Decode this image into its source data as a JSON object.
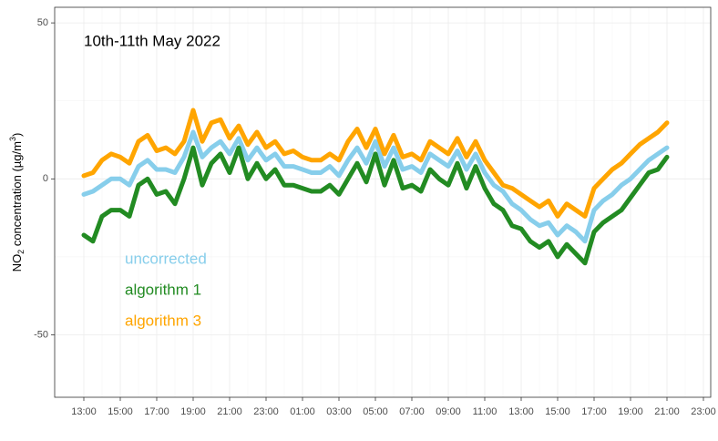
{
  "chart_data": {
    "type": "line",
    "title": "10th-11th May 2022",
    "ylabel_parts": [
      "NO",
      "2",
      " concentration (µg/m",
      "3",
      ")"
    ],
    "x": [
      13,
      13.5,
      14,
      14.5,
      15,
      15.5,
      16,
      16.5,
      17,
      17.5,
      18,
      18.5,
      19,
      19.5,
      20,
      20.5,
      21,
      21.5,
      22,
      22.5,
      23,
      23.5,
      24,
      24.5,
      25,
      25.5,
      26,
      26.5,
      27,
      27.5,
      28,
      28.5,
      29,
      29.5,
      30,
      30.5,
      31,
      31.5,
      32,
      32.5,
      33,
      33.5,
      34,
      34.5,
      35,
      35.5,
      36,
      36.5,
      37,
      37.5,
      38,
      38.5,
      39,
      39.5,
      40,
      40.5,
      41,
      41.5,
      42,
      42.5,
      43,
      43.5,
      44,
      44.5,
      45
    ],
    "series": [
      {
        "name": "uncorrected",
        "color": "#87ceeb",
        "values": [
          -5,
          -4,
          -2,
          0,
          0,
          -2,
          4,
          6,
          3,
          3,
          2,
          7,
          15,
          7,
          10,
          12,
          8,
          13,
          6,
          10,
          6,
          8,
          4,
          4,
          3,
          2,
          2,
          4,
          1,
          6,
          10,
          5,
          12,
          4,
          10,
          3,
          4,
          2,
          8,
          6,
          4,
          9,
          3,
          8,
          2,
          -2,
          -4,
          -8,
          -10,
          -13,
          -15,
          -14,
          -18,
          -15,
          -17,
          -20,
          -10,
          -7,
          -5,
          -2,
          0,
          3,
          6,
          8,
          10
        ]
      },
      {
        "name": "algorithm 1",
        "color": "#228b22",
        "values": [
          -18,
          -20,
          -12,
          -10,
          -10,
          -12,
          -2,
          0,
          -5,
          -4,
          -8,
          0,
          10,
          -2,
          5,
          8,
          2,
          10,
          0,
          5,
          0,
          3,
          -2,
          -2,
          -3,
          -4,
          -4,
          -2,
          -5,
          0,
          5,
          -1,
          8,
          -2,
          6,
          -3,
          -2,
          -4,
          3,
          0,
          -2,
          5,
          -3,
          4,
          -3,
          -8,
          -10,
          -15,
          -16,
          -20,
          -22,
          -20,
          -25,
          -21,
          -24,
          -27,
          -17,
          -14,
          -12,
          -10,
          -6,
          -2,
          2,
          3,
          7
        ]
      },
      {
        "name": "algorithm 3",
        "color": "#ffa500",
        "values": [
          1,
          2,
          6,
          8,
          7,
          5,
          12,
          14,
          9,
          10,
          8,
          12,
          22,
          12,
          18,
          19,
          13,
          17,
          11,
          15,
          10,
          12,
          8,
          9,
          7,
          6,
          6,
          8,
          6,
          12,
          16,
          10,
          16,
          8,
          14,
          7,
          8,
          6,
          12,
          10,
          8,
          13,
          7,
          12,
          6,
          2,
          -2,
          -3,
          -5,
          -7,
          -9,
          -7,
          -12,
          -8,
          -10,
          -12,
          -3,
          0,
          3,
          5,
          8,
          11,
          13,
          15,
          18
        ]
      }
    ],
    "xlim": [
      11.4,
      47.4
    ],
    "xticks": [
      {
        "value": 13,
        "label": "13:00"
      },
      {
        "value": 15,
        "label": "15:00"
      },
      {
        "value": 17,
        "label": "17:00"
      },
      {
        "value": 19,
        "label": "19:00"
      },
      {
        "value": 21,
        "label": "21:00"
      },
      {
        "value": 23,
        "label": "23:00"
      },
      {
        "value": 25,
        "label": "01:00"
      },
      {
        "value": 27,
        "label": "03:00"
      },
      {
        "value": 29,
        "label": "05:00"
      },
      {
        "value": 31,
        "label": "07:00"
      },
      {
        "value": 33,
        "label": "09:00"
      },
      {
        "value": 35,
        "label": "11:00"
      },
      {
        "value": 37,
        "label": "13:00"
      },
      {
        "value": 39,
        "label": "15:00"
      },
      {
        "value": 41,
        "label": "17:00"
      },
      {
        "value": 43,
        "label": "19:00"
      },
      {
        "value": 45,
        "label": "21:00"
      },
      {
        "value": 47,
        "label": "23:00"
      }
    ],
    "ylim": [
      -70,
      55
    ],
    "yticks": [
      -50,
      0,
      50
    ],
    "grid": true
  }
}
